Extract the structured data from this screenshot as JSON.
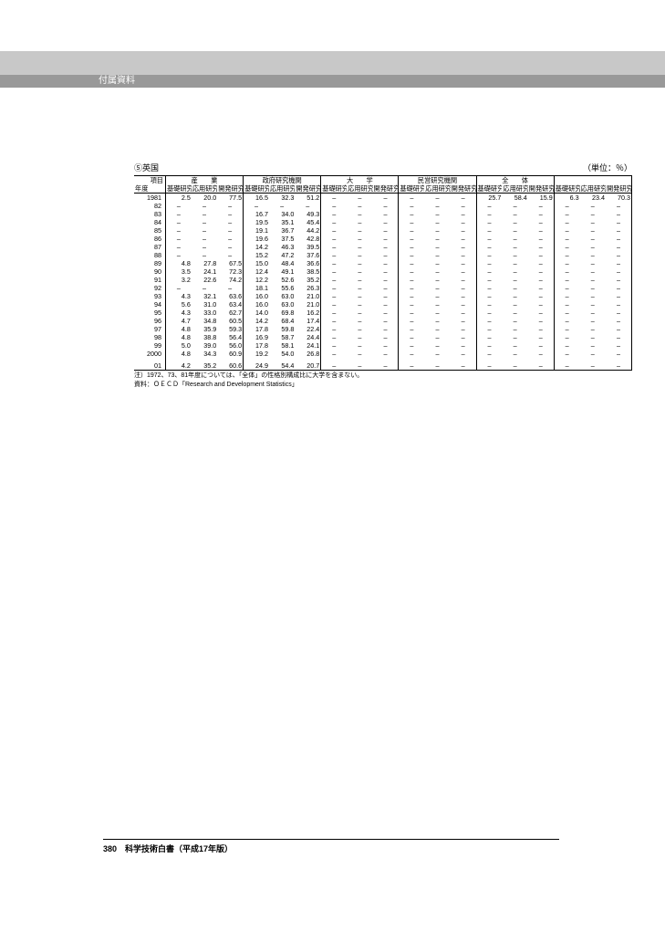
{
  "page": {
    "section_title": "付属資料",
    "footer": "380　科学技術白書（平成17年版）"
  },
  "table": {
    "title": "⑤英国",
    "unit": "（単位：％）",
    "top_left_label": "項目",
    "row_header_top": "",
    "row_header_bottom": "年度",
    "groups": [
      "産　　業",
      "政府研究機関",
      "大　　学",
      "民営研究機関",
      "全　　体"
    ],
    "sub_headers": [
      "基礎研究",
      "応用研究",
      "開発研究"
    ],
    "footnotes": [
      "注）1972、73、81年度については、「全体」の性格別構成比に大学を含まない。",
      "資料：ＯＥＣＤ「Research and Development Statistics」"
    ],
    "blank_after": [
      "1985",
      "1990",
      "1995",
      "2000"
    ],
    "rows": [
      {
        "year": "1981",
        "v": [
          "2.5",
          "20.0",
          "77.5",
          "16.5",
          "32.3",
          "51.2",
          "–",
          "–",
          "–",
          "–",
          "–",
          "–",
          "25.7",
          "58.4",
          "15.9",
          "6.3",
          "23.4",
          "70.3"
        ]
      },
      {
        "year": "82",
        "v": [
          "–",
          "–",
          "–",
          "–",
          "–",
          "–",
          "–",
          "–",
          "–",
          "–",
          "–",
          "–",
          "–",
          "–",
          "–",
          "–",
          "–",
          "–"
        ]
      },
      {
        "year": "83",
        "v": [
          "–",
          "–",
          "–",
          "16.7",
          "34.0",
          "49.3",
          "–",
          "–",
          "–",
          "–",
          "–",
          "–",
          "–",
          "–",
          "–",
          "–",
          "–",
          "–"
        ]
      },
      {
        "year": "84",
        "v": [
          "–",
          "–",
          "–",
          "19.5",
          "35.1",
          "45.4",
          "–",
          "–",
          "–",
          "–",
          "–",
          "–",
          "–",
          "–",
          "–",
          "–",
          "–",
          "–"
        ]
      },
      {
        "year": "85",
        "v": [
          "–",
          "–",
          "–",
          "19.1",
          "36.7",
          "44.2",
          "–",
          "–",
          "–",
          "–",
          "–",
          "–",
          "–",
          "–",
          "–",
          "–",
          "–",
          "–"
        ]
      },
      {
        "year": "86",
        "v": [
          "–",
          "–",
          "–",
          "19.6",
          "37.5",
          "42.8",
          "–",
          "–",
          "–",
          "–",
          "–",
          "–",
          "–",
          "–",
          "–",
          "–",
          "–",
          "–"
        ]
      },
      {
        "year": "87",
        "v": [
          "–",
          "–",
          "–",
          "14.2",
          "46.3",
          "39.5",
          "–",
          "–",
          "–",
          "–",
          "–",
          "–",
          "–",
          "–",
          "–",
          "–",
          "–",
          "–"
        ]
      },
      {
        "year": "88",
        "v": [
          "–",
          "–",
          "–",
          "15.2",
          "47.2",
          "37.6",
          "–",
          "–",
          "–",
          "–",
          "–",
          "–",
          "–",
          "–",
          "–",
          "–",
          "–",
          "–"
        ]
      },
      {
        "year": "89",
        "v": [
          "4.8",
          "27.8",
          "67.5",
          "15.0",
          "48.4",
          "36.6",
          "–",
          "–",
          "–",
          "–",
          "–",
          "–",
          "–",
          "–",
          "–",
          "–",
          "–",
          "–"
        ]
      },
      {
        "year": "90",
        "v": [
          "3.5",
          "24.1",
          "72.3",
          "12.4",
          "49.1",
          "38.5",
          "–",
          "–",
          "–",
          "–",
          "–",
          "–",
          "–",
          "–",
          "–",
          "–",
          "–",
          "–"
        ]
      },
      {
        "year": "91",
        "v": [
          "3.2",
          "22.6",
          "74.2",
          "12.2",
          "52.6",
          "35.2",
          "–",
          "–",
          "–",
          "–",
          "–",
          "–",
          "–",
          "–",
          "–",
          "–",
          "–",
          "–"
        ]
      },
      {
        "year": "92",
        "v": [
          "–",
          "–",
          "–",
          "18.1",
          "55.6",
          "26.3",
          "–",
          "–",
          "–",
          "–",
          "–",
          "–",
          "–",
          "–",
          "–",
          "–",
          "–",
          "–"
        ]
      },
      {
        "year": "93",
        "v": [
          "4.3",
          "32.1",
          "63.6",
          "16.0",
          "63.0",
          "21.0",
          "–",
          "–",
          "–",
          "–",
          "–",
          "–",
          "–",
          "–",
          "–",
          "–",
          "–",
          "–"
        ]
      },
      {
        "year": "94",
        "v": [
          "5.6",
          "31.0",
          "63.4",
          "16.0",
          "63.0",
          "21.0",
          "–",
          "–",
          "–",
          "–",
          "–",
          "–",
          "–",
          "–",
          "–",
          "–",
          "–",
          "–"
        ]
      },
      {
        "year": "95",
        "v": [
          "4.3",
          "33.0",
          "62.7",
          "14.0",
          "69.8",
          "16.2",
          "–",
          "–",
          "–",
          "–",
          "–",
          "–",
          "–",
          "–",
          "–",
          "–",
          "–",
          "–"
        ]
      },
      {
        "year": "96",
        "v": [
          "4.7",
          "34.8",
          "60.5",
          "14.2",
          "68.4",
          "17.4",
          "–",
          "–",
          "–",
          "–",
          "–",
          "–",
          "–",
          "–",
          "–",
          "–",
          "–",
          "–"
        ]
      },
      {
        "year": "97",
        "v": [
          "4.8",
          "35.9",
          "59.3",
          "17.8",
          "59.8",
          "22.4",
          "–",
          "–",
          "–",
          "–",
          "–",
          "–",
          "–",
          "–",
          "–",
          "–",
          "–",
          "–"
        ]
      },
      {
        "year": "98",
        "v": [
          "4.8",
          "38.8",
          "56.4",
          "16.9",
          "58.7",
          "24.4",
          "–",
          "–",
          "–",
          "–",
          "–",
          "–",
          "–",
          "–",
          "–",
          "–",
          "–",
          "–"
        ]
      },
      {
        "year": "99",
        "v": [
          "5.0",
          "39.0",
          "56.0",
          "17.8",
          "58.1",
          "24.1",
          "–",
          "–",
          "–",
          "–",
          "–",
          "–",
          "–",
          "–",
          "–",
          "–",
          "–",
          "–"
        ]
      },
      {
        "year": "2000",
        "v": [
          "4.8",
          "34.3",
          "60.9",
          "19.2",
          "54.0",
          "26.8",
          "–",
          "–",
          "–",
          "–",
          "–",
          "–",
          "–",
          "–",
          "–",
          "–",
          "–",
          "–"
        ]
      },
      {
        "year": "01",
        "v": [
          "4.2",
          "35.2",
          "60.6",
          "24.9",
          "54.4",
          "20.7",
          "–",
          "–",
          "–",
          "–",
          "–",
          "–",
          "–",
          "–",
          "–",
          "–",
          "–",
          "–"
        ]
      }
    ]
  },
  "styles": {
    "banner_color": "#c8c8c8",
    "title_bg": "#999999",
    "title_fg": "#ffffff",
    "border_color": "#000000",
    "page_bg": "#ffffff"
  }
}
